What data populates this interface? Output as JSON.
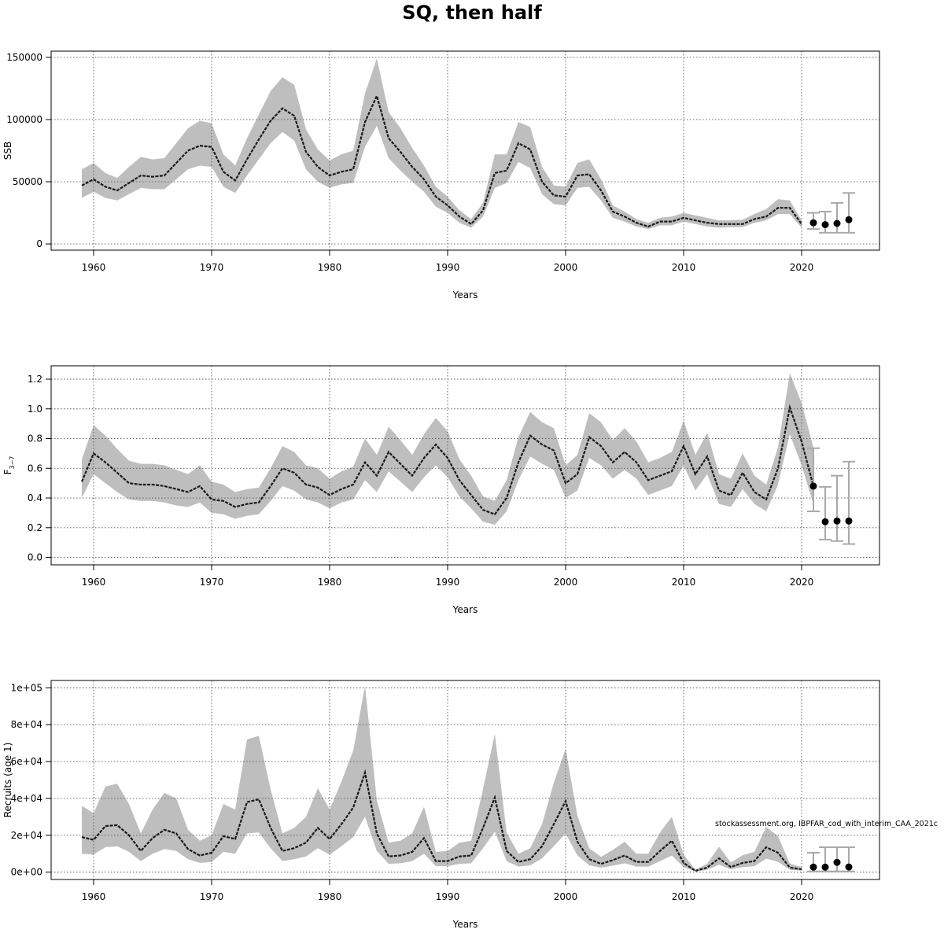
{
  "title": "SQ, then half",
  "note": "stockassessment.org, IBPFAR_cod_with_interim_CAA_2021c",
  "colors": {
    "band": "#bebebe",
    "line": "#1a1a1a",
    "grid": "#555555",
    "point": "#000000",
    "errorbar": "#a9a9a9"
  },
  "chart_data": [
    {
      "type": "line",
      "ylabel": "SSB",
      "xlabel": "Years",
      "xlim": [
        1956.4,
        2026.6
      ],
      "ylim": [
        -5000,
        155000
      ],
      "xticks": [
        1960,
        1970,
        1980,
        1990,
        2000,
        2010,
        2020
      ],
      "xtick_labels": [
        "1960",
        "1970",
        "1980",
        "1990",
        "2000",
        "2010",
        "2020"
      ],
      "yticks": [
        0,
        50000,
        100000,
        150000
      ],
      "ytick_labels": [
        "0",
        "50000",
        "100000",
        "150000"
      ],
      "grid": true,
      "x": [
        1959,
        1960,
        1961,
        1962,
        1963,
        1964,
        1965,
        1966,
        1967,
        1968,
        1969,
        1970,
        1971,
        1972,
        1973,
        1974,
        1975,
        1976,
        1977,
        1978,
        1979,
        1980,
        1981,
        1982,
        1983,
        1984,
        1985,
        1986,
        1987,
        1988,
        1989,
        1990,
        1991,
        1992,
        1993,
        1994,
        1995,
        1996,
        1997,
        1998,
        1999,
        2000,
        2001,
        2002,
        2003,
        2004,
        2005,
        2006,
        2007,
        2008,
        2009,
        2010,
        2011,
        2012,
        2013,
        2014,
        2015,
        2016,
        2017,
        2018,
        2019,
        2020
      ],
      "estimate": [
        47000,
        52000,
        46000,
        43000,
        49000,
        55000,
        54000,
        55000,
        65000,
        75000,
        79000,
        78000,
        58000,
        51000,
        68000,
        84000,
        99000,
        109000,
        103000,
        74000,
        62000,
        55000,
        58000,
        60000,
        98000,
        119000,
        85000,
        74000,
        62000,
        52000,
        38000,
        31000,
        22000,
        16000,
        27000,
        57000,
        59000,
        81000,
        76000,
        50000,
        39000,
        38000,
        55000,
        56000,
        43000,
        26000,
        22000,
        17000,
        14000,
        18000,
        18000,
        21000,
        19000,
        17000,
        16000,
        16000,
        16000,
        20000,
        22000,
        29000,
        29000,
        16000
      ],
      "lower": [
        37000,
        42000,
        37000,
        35000,
        40000,
        45000,
        44000,
        44000,
        52000,
        60000,
        63000,
        62000,
        46000,
        41000,
        55000,
        68000,
        81000,
        90000,
        83000,
        60000,
        50000,
        45000,
        48000,
        49000,
        78000,
        95000,
        69000,
        59000,
        50000,
        42000,
        30000,
        25000,
        17000,
        13000,
        22000,
        45000,
        49000,
        66000,
        61000,
        40000,
        32000,
        31000,
        45000,
        46000,
        35000,
        21000,
        18000,
        14000,
        12000,
        15000,
        15000,
        18000,
        16000,
        14000,
        13000,
        13500,
        13500,
        17000,
        19000,
        24000,
        24000,
        13000
      ],
      "upper": [
        60000,
        65000,
        57000,
        53000,
        62000,
        70000,
        68000,
        69000,
        81000,
        93000,
        99000,
        97000,
        72000,
        63000,
        85000,
        104000,
        123000,
        134000,
        128000,
        92000,
        76000,
        67000,
        72000,
        75000,
        121000,
        149000,
        106000,
        93000,
        77000,
        63000,
        46000,
        38000,
        27000,
        20000,
        33000,
        72000,
        72000,
        98000,
        94000,
        62000,
        47000,
        46000,
        65000,
        68000,
        52000,
        31000,
        26000,
        20000,
        17000,
        21000,
        22000,
        25000,
        23000,
        21000,
        19000,
        19000,
        19500,
        24000,
        28000,
        36000,
        35000,
        19000
      ],
      "forecast": {
        "x": [
          2021,
          2022,
          2023,
          2024
        ],
        "values": [
          17000,
          15500,
          16500,
          19500
        ],
        "lower": [
          12000,
          9000,
          9000,
          9000
        ],
        "upper": [
          25000,
          26000,
          33000,
          41000
        ]
      }
    },
    {
      "type": "line",
      "ylabel": "F₃₋₇",
      "ylabel_main": "F",
      "ylabel_sub": "3−7",
      "xlabel": "Years",
      "xlim": [
        1956.4,
        2026.6
      ],
      "ylim": [
        -0.05,
        1.29
      ],
      "xticks": [
        1960,
        1970,
        1980,
        1990,
        2000,
        2010,
        2020
      ],
      "xtick_labels": [
        "1960",
        "1970",
        "1980",
        "1990",
        "2000",
        "2010",
        "2020"
      ],
      "yticks": [
        0,
        0.2,
        0.4,
        0.6,
        0.8,
        1.0,
        1.2
      ],
      "ytick_labels": [
        "0.0",
        "0.2",
        "0.4",
        "0.6",
        "0.8",
        "1.0",
        "1.2"
      ],
      "grid": true,
      "x": [
        1959,
        1960,
        1961,
        1962,
        1963,
        1964,
        1965,
        1966,
        1967,
        1968,
        1969,
        1970,
        1971,
        1972,
        1973,
        1974,
        1975,
        1976,
        1977,
        1978,
        1979,
        1980,
        1981,
        1982,
        1983,
        1984,
        1985,
        1986,
        1987,
        1988,
        1989,
        1990,
        1991,
        1992,
        1993,
        1994,
        1995,
        1996,
        1997,
        1998,
        1999,
        2000,
        2001,
        2002,
        2003,
        2004,
        2005,
        2006,
        2007,
        2008,
        2009,
        2010,
        2011,
        2012,
        2013,
        2014,
        2015,
        2016,
        2017,
        2018,
        2019,
        2020,
        2021
      ],
      "estimate": [
        0.51,
        0.7,
        0.64,
        0.57,
        0.5,
        0.49,
        0.49,
        0.48,
        0.46,
        0.44,
        0.48,
        0.39,
        0.38,
        0.34,
        0.36,
        0.37,
        0.48,
        0.6,
        0.57,
        0.49,
        0.47,
        0.42,
        0.46,
        0.49,
        0.64,
        0.55,
        0.71,
        0.63,
        0.55,
        0.67,
        0.76,
        0.67,
        0.52,
        0.42,
        0.32,
        0.29,
        0.4,
        0.64,
        0.82,
        0.76,
        0.72,
        0.5,
        0.56,
        0.81,
        0.75,
        0.64,
        0.71,
        0.64,
        0.52,
        0.55,
        0.58,
        0.75,
        0.56,
        0.68,
        0.45,
        0.42,
        0.57,
        0.44,
        0.39,
        0.6,
        1.01,
        0.78,
        0.48
      ],
      "lower": [
        0.4,
        0.56,
        0.5,
        0.44,
        0.39,
        0.38,
        0.38,
        0.37,
        0.35,
        0.34,
        0.37,
        0.3,
        0.29,
        0.26,
        0.28,
        0.29,
        0.38,
        0.48,
        0.45,
        0.39,
        0.37,
        0.33,
        0.37,
        0.39,
        0.52,
        0.44,
        0.58,
        0.51,
        0.44,
        0.54,
        0.62,
        0.54,
        0.41,
        0.33,
        0.24,
        0.22,
        0.31,
        0.52,
        0.68,
        0.63,
        0.59,
        0.4,
        0.45,
        0.67,
        0.62,
        0.53,
        0.59,
        0.53,
        0.42,
        0.45,
        0.48,
        0.62,
        0.45,
        0.56,
        0.36,
        0.34,
        0.46,
        0.36,
        0.31,
        0.49,
        0.83,
        0.62,
        0.36
      ],
      "upper": [
        0.66,
        0.89,
        0.82,
        0.73,
        0.65,
        0.63,
        0.63,
        0.62,
        0.59,
        0.56,
        0.62,
        0.51,
        0.49,
        0.44,
        0.46,
        0.47,
        0.6,
        0.75,
        0.71,
        0.62,
        0.6,
        0.53,
        0.58,
        0.61,
        0.8,
        0.69,
        0.88,
        0.79,
        0.69,
        0.83,
        0.94,
        0.85,
        0.66,
        0.55,
        0.41,
        0.38,
        0.52,
        0.81,
        0.98,
        0.91,
        0.87,
        0.62,
        0.69,
        0.97,
        0.91,
        0.79,
        0.87,
        0.78,
        0.64,
        0.67,
        0.71,
        0.92,
        0.69,
        0.84,
        0.56,
        0.53,
        0.7,
        0.55,
        0.49,
        0.74,
        1.24,
        1.04,
        0.74
      ],
      "forecast": {
        "x": [
          2021,
          2022,
          2023,
          2024
        ],
        "values": [
          0.48,
          0.24,
          0.245,
          0.245
        ],
        "lower": [
          0.31,
          0.12,
          0.11,
          0.09
        ],
        "upper": [
          0.735,
          0.475,
          0.55,
          0.645
        ]
      }
    },
    {
      "type": "line",
      "ylabel": "Recruits (age 1)",
      "xlabel": "Years",
      "xlim": [
        1956.4,
        2026.6
      ],
      "ylim": [
        -4000,
        104000
      ],
      "xticks": [
        1960,
        1970,
        1980,
        1990,
        2000,
        2010,
        2020
      ],
      "xtick_labels": [
        "1960",
        "1970",
        "1980",
        "1990",
        "2000",
        "2010",
        "2020"
      ],
      "yticks": [
        0,
        20000,
        40000,
        60000,
        80000,
        100000
      ],
      "ytick_labels": [
        "0e+00",
        "2e+04",
        "4e+04",
        "6e+04",
        "8e+04",
        "1e+05"
      ],
      "grid": true,
      "x": [
        1959,
        1960,
        1961,
        1962,
        1963,
        1964,
        1965,
        1966,
        1967,
        1968,
        1969,
        1970,
        1971,
        1972,
        1973,
        1974,
        1975,
        1976,
        1977,
        1978,
        1979,
        1980,
        1981,
        1982,
        1983,
        1984,
        1985,
        1986,
        1987,
        1988,
        1989,
        1990,
        1991,
        1992,
        1993,
        1994,
        1995,
        1996,
        1997,
        1998,
        1999,
        2000,
        2001,
        2002,
        2003,
        2004,
        2005,
        2006,
        2007,
        2008,
        2009,
        2010,
        2011,
        2012,
        2013,
        2014,
        2015,
        2016,
        2017,
        2018,
        2019,
        2020
      ],
      "estimate": [
        19000,
        17500,
        25000,
        25500,
        20000,
        11500,
        18500,
        23000,
        21000,
        12500,
        9000,
        10500,
        19500,
        18000,
        38000,
        39500,
        24000,
        11500,
        13000,
        16000,
        24000,
        18000,
        26000,
        35000,
        54000,
        21000,
        8500,
        9000,
        11000,
        18500,
        6000,
        6000,
        8500,
        9000,
        24000,
        40500,
        11500,
        5500,
        7000,
        14000,
        26000,
        38500,
        16500,
        7000,
        4500,
        6500,
        9000,
        5500,
        5500,
        11500,
        17000,
        5000,
        700,
        2500,
        7500,
        2800,
        5000,
        6000,
        13500,
        10500,
        2500,
        1500
      ],
      "lower": [
        10000,
        9500,
        13500,
        14000,
        11000,
        6000,
        10000,
        12500,
        11500,
        7000,
        5000,
        5500,
        11000,
        10000,
        21000,
        21500,
        13000,
        6000,
        7000,
        8500,
        13000,
        9500,
        14000,
        19000,
        30000,
        11500,
        4500,
        4800,
        6000,
        10000,
        3200,
        3200,
        4500,
        4800,
        13000,
        22000,
        6000,
        3000,
        3700,
        7500,
        14000,
        21000,
        9000,
        3700,
        2400,
        3500,
        4800,
        3000,
        3000,
        6000,
        9000,
        2700,
        300,
        1300,
        4000,
        1500,
        2700,
        3200,
        7300,
        5600,
        1300,
        800
      ],
      "upper": [
        36000,
        32000,
        46500,
        48000,
        37000,
        21000,
        34000,
        43000,
        40000,
        23000,
        17000,
        20000,
        37000,
        34000,
        72000,
        74000,
        45000,
        21000,
        24000,
        30000,
        45500,
        34000,
        49000,
        66000,
        101000,
        39000,
        16000,
        17000,
        21000,
        35500,
        11000,
        11500,
        16000,
        17000,
        45000,
        75000,
        21500,
        10000,
        13000,
        26000,
        48500,
        67000,
        30500,
        13000,
        8300,
        12000,
        16500,
        10000,
        10000,
        21500,
        30000,
        9500,
        1300,
        4600,
        13800,
        5200,
        9200,
        11000,
        24500,
        19500,
        4600,
        2800
      ],
      "forecast": {
        "x": [
          2021,
          2022,
          2023,
          2024
        ],
        "values": [
          2700,
          2700,
          5300,
          2800
        ],
        "lower": [
          400,
          400,
          400,
          400
        ],
        "upper": [
          10500,
          13500,
          13500,
          13500
        ]
      }
    }
  ]
}
